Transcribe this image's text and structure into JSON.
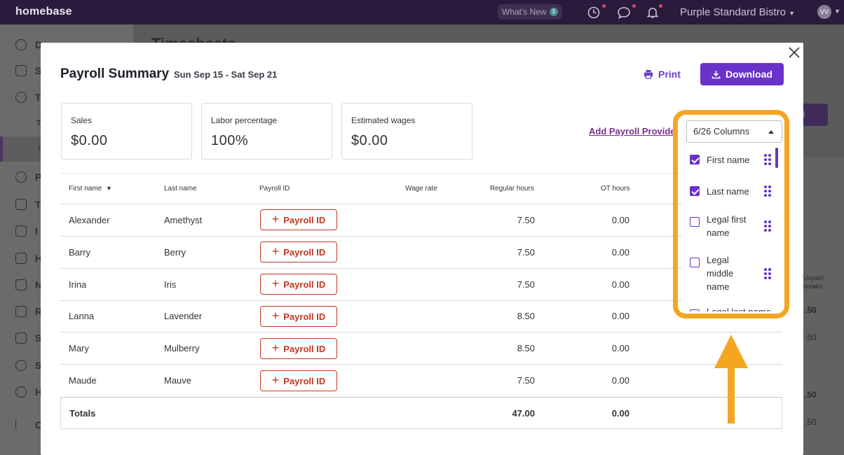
{
  "topbar": {
    "logo": "homebase",
    "whats_new": "What's New",
    "whats_new_count": "3",
    "business_name": "Purple Standard Bistro",
    "avatar_initials": "VV"
  },
  "background": {
    "page_title": "Timesheets",
    "button_label": "ad",
    "sidebar_letters": [
      "D",
      "S",
      "T",
      "T",
      "S",
      "P",
      "T",
      "I",
      "H",
      "N",
      "R",
      "S",
      "S",
      "H",
      "C"
    ],
    "col_header": "Unpaid breaks",
    "col_values": [
      ".50",
      ".50",
      ".50",
      ".50"
    ]
  },
  "modal": {
    "title": "Payroll Summary",
    "date_range": "Sun Sep 15 - Sat Sep 21",
    "print_label": "Print",
    "download_label": "Download",
    "stats": [
      {
        "label": "Sales",
        "value": "$0.00"
      },
      {
        "label": "Labor percentage",
        "value": "100%"
      },
      {
        "label": "Estimated wages",
        "value": "$0.00"
      }
    ],
    "add_provider_label": "Add Payroll Provider"
  },
  "table": {
    "headers": {
      "first_name": "First name",
      "last_name": "Last name",
      "payroll_id": "Payroll ID",
      "wage_rate": "Wage rate",
      "regular_hours": "Regular hours",
      "ot_hours": "OT hours"
    },
    "payroll_button_label": "Payroll ID",
    "rows": [
      {
        "first": "Alexander",
        "last": "Amethyst",
        "regular": "7.50",
        "ot": "0.00"
      },
      {
        "first": "Barry",
        "last": "Berry",
        "regular": "7.50",
        "ot": "0.00"
      },
      {
        "first": "Irina",
        "last": "Iris",
        "regular": "7.50",
        "ot": "0.00"
      },
      {
        "first": "Lanna",
        "last": "Lavender",
        "regular": "8.50",
        "ot": "0.00"
      },
      {
        "first": "Mary",
        "last": "Mulberry",
        "regular": "8.50",
        "ot": "0.00"
      },
      {
        "first": "Maude",
        "last": "Mauve",
        "regular": "7.50",
        "ot": "0.00"
      }
    ],
    "totals": {
      "label": "Totals",
      "regular": "47.00",
      "ot": "0.00"
    }
  },
  "columns_dropdown": {
    "selected": "6/26 Columns",
    "items": [
      {
        "label": "First name",
        "checked": true
      },
      {
        "label": "Last name",
        "checked": true
      },
      {
        "label": "Legal first name",
        "checked": false
      },
      {
        "label": "Legal middle name",
        "checked": false
      },
      {
        "label": "Legal last name",
        "checked": false
      }
    ]
  },
  "colors": {
    "brand_purple": "#6a32c9",
    "payroll_red": "#c4361f",
    "highlight_orange": "#f4a623",
    "topbar": "#2a1b3d"
  }
}
